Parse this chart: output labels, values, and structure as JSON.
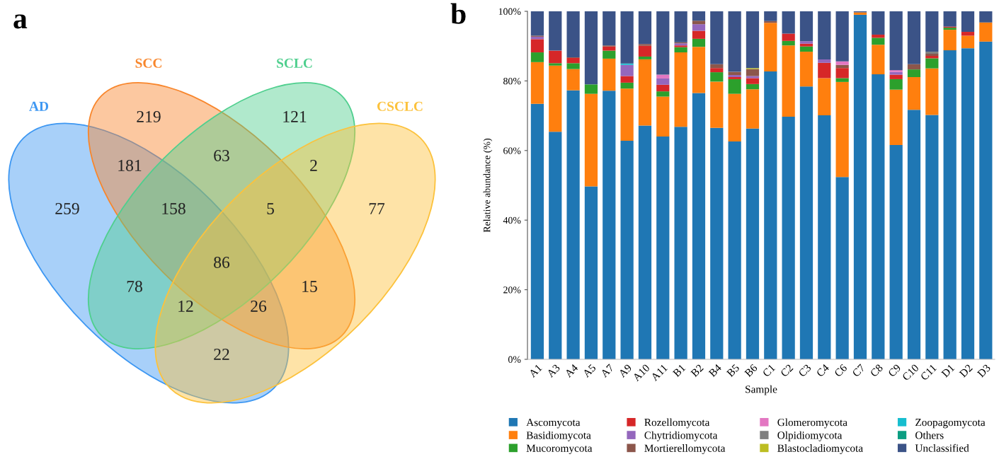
{
  "chart_data": [
    {
      "type": "other",
      "title": "a",
      "colors": [
        "#3d97f2",
        "#f8862c",
        "#4fcf8e",
        "#fcc23c"
      ],
      "annotations": [
        "AD",
        "SCC",
        "SCLC",
        "CSCLC",
        "259",
        "219",
        "121",
        "77",
        "181",
        "63",
        "2",
        "78",
        "15",
        "22",
        "158",
        "5",
        "26",
        "12",
        "86"
      ]
    },
    {
      "type": "bar",
      "title": "b",
      "stacked": true,
      "xlabel": "Sample",
      "ylabel": "Relative abundance (%)",
      "categories": [
        "A1",
        "A3",
        "A4",
        "A5",
        "A7",
        "A9",
        "A10",
        "A11",
        "B1",
        "B2",
        "B4",
        "B5",
        "B6",
        "C1",
        "C2",
        "C3",
        "C4",
        "C6",
        "C7",
        "C8",
        "C9",
        "C10",
        "C11",
        "D1",
        "D2",
        "D3"
      ],
      "ylim": [
        0,
        100
      ],
      "yticks": [
        {
          "value": 0,
          "label": "0%"
        },
        {
          "value": 20,
          "label": "20%"
        },
        {
          "value": 40,
          "label": "40%"
        },
        {
          "value": 60,
          "label": "60%"
        },
        {
          "value": 80,
          "label": "80%"
        },
        {
          "value": 100,
          "label": "100%"
        }
      ],
      "grid": false,
      "legend": "bottom",
      "series": [
        {
          "name": "Ascomycota",
          "color": "#1f77b4",
          "values": [
            73.4,
            65.4,
            77.3,
            49.7,
            77.2,
            62.8,
            67.2,
            64.0,
            66.8,
            76.5,
            66.5,
            62.6,
            66.3,
            82.7,
            69.7,
            78.4,
            70.1,
            52.4,
            99.0,
            81.9,
            61.6,
            71.7,
            70.2,
            88.8,
            89.4,
            91.3
          ]
        },
        {
          "name": "Basidiomycota",
          "color": "#ff7f0e",
          "values": [
            12.0,
            19.0,
            6.1,
            26.6,
            9.2,
            15.0,
            19.0,
            11.5,
            21.4,
            13.3,
            13.3,
            13.7,
            11.3,
            14.0,
            20.5,
            10.0,
            10.7,
            27.3,
            0.7,
            8.5,
            15.9,
            9.4,
            13.4,
            5.9,
            3.6,
            5.5
          ]
        },
        {
          "name": "Mucoromycota",
          "color": "#2ca02c",
          "values": [
            2.8,
            0.7,
            1.7,
            2.7,
            2.3,
            1.7,
            0.8,
            1.5,
            1.5,
            2.3,
            2.7,
            4.2,
            1.5,
            0,
            1.3,
            1.5,
            0,
            1.1,
            0,
            2.0,
            3.0,
            2.2,
            2.9,
            0.6,
            0,
            0
          ]
        },
        {
          "name": "Rozellomycota",
          "color": "#d62728",
          "values": [
            3.8,
            3.6,
            1.5,
            0,
            1.2,
            1.9,
            3.1,
            1.9,
            0.5,
            2.3,
            1.2,
            0.6,
            1.7,
            0,
            2.1,
            0.8,
            4.4,
            2.9,
            0,
            0.9,
            1.3,
            0,
            0.7,
            0.3,
            1.1,
            0
          ]
        },
        {
          "name": "Chytridiomycota",
          "color": "#9467bd",
          "values": [
            0.7,
            0,
            0,
            0,
            0,
            3.2,
            0,
            1.8,
            0.6,
            1.9,
            0,
            0.6,
            0.6,
            0,
            0,
            0.7,
            1.0,
            0,
            0,
            0,
            0.8,
            0,
            0,
            0,
            0,
            0
          ]
        },
        {
          "name": "Mortierellomycota",
          "color": "#8c564b",
          "values": [
            0.3,
            0,
            0.2,
            0,
            0.3,
            0,
            0.5,
            0,
            0.3,
            1.0,
            1.1,
            0.9,
            2.0,
            0.5,
            0,
            0,
            0,
            0.9,
            0,
            0,
            0,
            1.5,
            0.6,
            0,
            0,
            0
          ]
        },
        {
          "name": "Glomeromycota",
          "color": "#e377c2",
          "values": [
            0,
            0,
            0,
            0,
            0,
            0,
            0,
            1.1,
            0,
            0,
            0,
            0,
            0,
            0,
            0,
            0,
            0,
            1.0,
            0,
            0,
            0.5,
            0,
            0,
            0,
            0,
            0
          ]
        },
        {
          "name": "Olpidiomycota",
          "color": "#7f7f7f",
          "values": [
            0,
            0,
            0,
            0,
            0,
            0,
            0,
            0,
            0,
            0,
            0,
            0,
            0,
            0,
            0,
            0,
            0,
            0,
            0,
            0,
            0,
            0,
            0.6,
            0,
            0,
            0
          ]
        },
        {
          "name": "Blastocladiomycota",
          "color": "#bcbd22",
          "values": [
            0,
            0,
            0,
            0,
            0,
            0,
            0,
            0,
            0,
            0,
            0,
            0,
            0.3,
            0,
            0,
            0,
            0,
            0,
            0,
            0,
            0,
            0,
            0,
            0,
            0,
            0
          ]
        },
        {
          "name": "Zoopagomycota",
          "color": "#17becf",
          "values": [
            0,
            0,
            0,
            0,
            0,
            0.4,
            0,
            0,
            0,
            0,
            0,
            0,
            0,
            0,
            0,
            0,
            0,
            0,
            0,
            0,
            0,
            0,
            0,
            0,
            0,
            0
          ]
        },
        {
          "name": "Others",
          "color": "#0b9e82",
          "values": [
            0,
            0,
            0,
            0,
            0,
            0,
            0,
            0,
            0,
            0,
            0,
            0,
            0,
            0,
            0,
            0,
            0,
            0,
            0,
            0,
            0,
            0,
            0,
            0,
            0,
            0
          ]
        },
        {
          "name": "Unclassified",
          "color": "#3b5387",
          "values": [
            7.0,
            11.3,
            13.2,
            21.0,
            9.8,
            15.0,
            9.4,
            18.2,
            8.9,
            2.7,
            15.2,
            17.4,
            16.3,
            2.8,
            6.4,
            8.6,
            13.8,
            14.4,
            0.3,
            6.7,
            16.9,
            15.2,
            11.6,
            4.4,
            5.9,
            3.2
          ]
        }
      ]
    }
  ]
}
